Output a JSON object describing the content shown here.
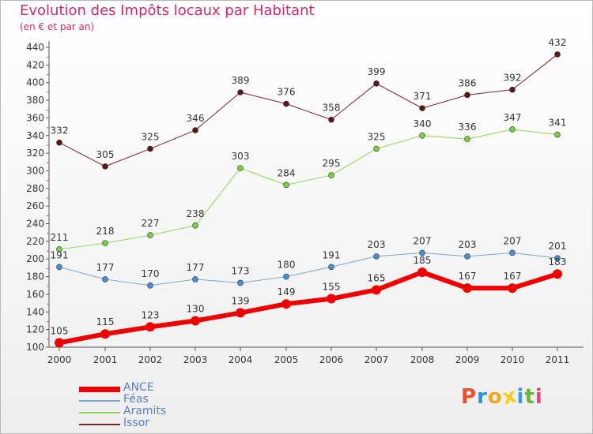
{
  "title": "Evolution des Impôts locaux par Habitant",
  "subtitle": "(en € et par an)",
  "brand": "Proxiti",
  "brand_colors": [
    "#e8522e",
    "#2f8fd8",
    "#f0a81e",
    "#f3cf1a",
    "#3a9ad9",
    "#6bb33a",
    "#e2477c"
  ],
  "chart_data": {
    "type": "line",
    "title": "Evolution des Impôts locaux par Habitant",
    "subtitle": "(en € et par an)",
    "xlabel": "",
    "ylabel": "",
    "x": [
      "2000",
      "2001",
      "2002",
      "2003",
      "2004",
      "2005",
      "2006",
      "2007",
      "2008",
      "2009",
      "2010",
      "2011"
    ],
    "ylim": [
      100,
      440
    ],
    "yticks": [
      100,
      120,
      140,
      160,
      180,
      200,
      220,
      240,
      260,
      280,
      300,
      320,
      340,
      360,
      380,
      400,
      420,
      440
    ],
    "grid": false,
    "legend_position": "bottom-left",
    "series": [
      {
        "name": "Issor",
        "color": "#7a2329",
        "marker": "#5c1418",
        "width": 1,
        "values": [
          332,
          305,
          325,
          346,
          389,
          376,
          358,
          399,
          371,
          386,
          392,
          432
        ]
      },
      {
        "name": "Aramits",
        "color": "#8fd65e",
        "marker": "#7ccd45",
        "width": 1,
        "values": [
          211,
          218,
          227,
          238,
          303,
          284,
          295,
          325,
          340,
          336,
          347,
          341
        ]
      },
      {
        "name": "Féas",
        "color": "#7aa6d6",
        "marker": "#4c8fd1",
        "width": 1,
        "values": [
          191,
          177,
          170,
          177,
          173,
          180,
          191,
          203,
          207,
          203,
          207,
          201
        ]
      },
      {
        "name": "ANCE",
        "color": "#ee0000",
        "marker": "#ee0000",
        "width": 6,
        "values": [
          105,
          115,
          123,
          130,
          139,
          149,
          155,
          165,
          185,
          167,
          167,
          183
        ]
      }
    ]
  }
}
